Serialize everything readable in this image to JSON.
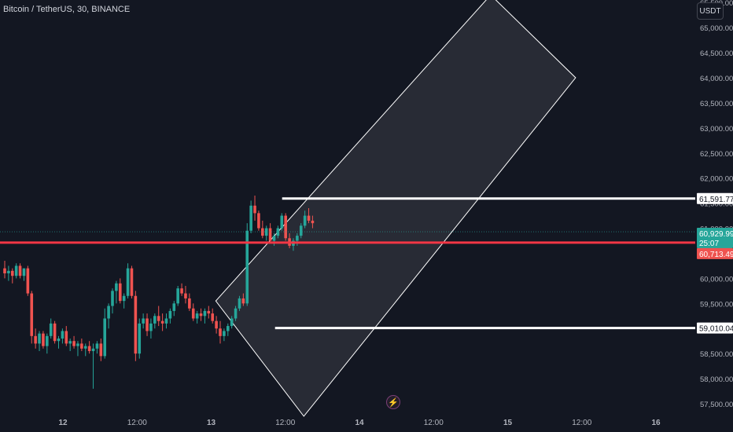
{
  "header": {
    "symbol_title": "Bitcoin / TetherUS, 30, BINANCE"
  },
  "toolbar": {
    "currency_label": "USDT"
  },
  "colors": {
    "background": "#131722",
    "up": "#26a69a",
    "down": "#ef5350",
    "horizontal_line": "#f23645",
    "channel_stroke": "#ffffff",
    "axis_text": "#b2b5be"
  },
  "icons": {
    "event": "lightning-icon"
  },
  "chart_data": {
    "type": "candlestick",
    "title": "Bitcoin / TetherUS, 30, BINANCE",
    "y_axis_side": "right",
    "ylim": [
      57250,
      65550
    ],
    "y_ticks": [
      "57,500.00",
      "58,000.00",
      "58,500.00",
      "59,000.00",
      "59,500.00",
      "60,000.00",
      "60,500.00",
      "61,000.00",
      "61,500.00",
      "62,000.00",
      "62,500.00",
      "63,000.00",
      "63,500.00",
      "64,000.00",
      "64,500.00",
      "65,000.00",
      "65,500.00"
    ],
    "x_ticks": [
      "12",
      "12:00",
      "13",
      "12:00",
      "14",
      "12:00",
      "15",
      "12:00",
      "16"
    ],
    "x_ticks_bold": [
      "12",
      "13",
      "14",
      "15",
      "16"
    ],
    "price_labels": [
      {
        "text": "61,591.77",
        "value": 61591.77,
        "style": "white"
      },
      {
        "text": "60,929.99",
        "value": 60929.99,
        "style": "green"
      },
      {
        "text": "25:07",
        "style": "green"
      },
      {
        "text": "60,713.49",
        "value": 60713.49,
        "style": "red"
      },
      {
        "text": "59,010.04",
        "value": 59010.04,
        "style": "white"
      }
    ],
    "horizontal_line": {
      "value": 60713.49,
      "color": "#f23645"
    },
    "segments": [
      {
        "from_time": "13 12:15",
        "to_time": "end",
        "value": 61591.77,
        "color": "#ffffff"
      },
      {
        "from_time": "13 12:15",
        "to_time": "end",
        "value": 59010.04,
        "color": "#ffffff"
      }
    ],
    "channel": {
      "label": "parallel channel",
      "corners": [
        {
          "time": "13 00:45",
          "price": 59550
        },
        {
          "time": "14 21:15",
          "price": 65650
        },
        {
          "time": "15 11:00",
          "price": 64000
        },
        {
          "time": "13 15:00",
          "price": 57250
        }
      ]
    },
    "candles": [
      [
        60200,
        60350,
        60000,
        60100
      ],
      [
        60100,
        60250,
        59950,
        60150
      ],
      [
        60150,
        60200,
        59900,
        60050
      ],
      [
        60050,
        60300,
        60000,
        60250
      ],
      [
        60250,
        60300,
        60000,
        60050
      ],
      [
        60050,
        60200,
        59950,
        60200
      ],
      [
        60200,
        60250,
        59650,
        59700
      ],
      [
        59700,
        59750,
        58700,
        58850
      ],
      [
        58850,
        59000,
        58600,
        58700
      ],
      [
        58700,
        58950,
        58550,
        58900
      ],
      [
        58900,
        58950,
        58600,
        58650
      ],
      [
        58650,
        58900,
        58500,
        58850
      ],
      [
        58850,
        59200,
        58800,
        59100
      ],
      [
        59100,
        59150,
        58700,
        58750
      ],
      [
        58750,
        58850,
        58600,
        58800
      ],
      [
        58800,
        59000,
        58700,
        58950
      ],
      [
        58950,
        59050,
        58650,
        58700
      ],
      [
        58700,
        58800,
        58550,
        58750
      ],
      [
        58750,
        58850,
        58600,
        58650
      ],
      [
        58650,
        58750,
        58450,
        58700
      ],
      [
        58700,
        58800,
        58550,
        58600
      ],
      [
        58600,
        58700,
        58450,
        58650
      ],
      [
        58650,
        58750,
        58500,
        58550
      ],
      [
        58550,
        58700,
        57800,
        58600
      ],
      [
        58600,
        58750,
        58500,
        58700
      ],
      [
        58700,
        58800,
        58350,
        58450
      ],
      [
        58450,
        59400,
        58400,
        59200
      ],
      [
        59200,
        59500,
        59000,
        59450
      ],
      [
        59450,
        59800,
        59300,
        59750
      ],
      [
        59750,
        59950,
        59500,
        59900
      ],
      [
        59900,
        60000,
        59500,
        59550
      ],
      [
        59550,
        59700,
        59400,
        59650
      ],
      [
        59650,
        60300,
        59600,
        60200
      ],
      [
        60200,
        60250,
        59600,
        59650
      ],
      [
        59650,
        59750,
        58350,
        58500
      ],
      [
        58500,
        59200,
        58400,
        59100
      ],
      [
        59100,
        59300,
        59000,
        59200
      ],
      [
        59200,
        59300,
        58850,
        58950
      ],
      [
        58950,
        59200,
        58800,
        59100
      ],
      [
        59100,
        59300,
        59000,
        59250
      ],
      [
        59250,
        59450,
        59050,
        59150
      ],
      [
        59150,
        59300,
        58950,
        59100
      ],
      [
        59100,
        59300,
        59000,
        59200
      ],
      [
        59200,
        59400,
        59100,
        59350
      ],
      [
        59350,
        59550,
        59250,
        59500
      ],
      [
        59500,
        59850,
        59450,
        59800
      ],
      [
        59800,
        59900,
        59650,
        59700
      ],
      [
        59700,
        59850,
        59500,
        59600
      ],
      [
        59600,
        59700,
        59350,
        59400
      ],
      [
        59400,
        59500,
        59150,
        59200
      ],
      [
        59200,
        59350,
        59100,
        59300
      ],
      [
        59300,
        59400,
        59150,
        59250
      ],
      [
        59250,
        59400,
        59100,
        59350
      ],
      [
        59350,
        59450,
        59200,
        59300
      ],
      [
        59300,
        59400,
        59100,
        59150
      ],
      [
        59150,
        59250,
        58900,
        59000
      ],
      [
        59000,
        59150,
        58700,
        58850
      ],
      [
        58850,
        59000,
        58750,
        58950
      ],
      [
        58950,
        59100,
        58850,
        59050
      ],
      [
        59050,
        59250,
        59000,
        59200
      ],
      [
        59200,
        59450,
        59150,
        59400
      ],
      [
        59400,
        59650,
        59350,
        59600
      ],
      [
        59600,
        59700,
        59450,
        59500
      ],
      [
        59500,
        61100,
        59450,
        60950
      ],
      [
        60950,
        61550,
        60900,
        61450
      ],
      [
        61450,
        61650,
        61150,
        61300
      ],
      [
        61300,
        61350,
        60950,
        61000
      ],
      [
        61000,
        61150,
        60800,
        60850
      ],
      [
        60850,
        61050,
        60750,
        61000
      ],
      [
        61000,
        61100,
        60700,
        60750
      ],
      [
        60750,
        60900,
        60650,
        60850
      ],
      [
        60850,
        61050,
        60800,
        61000
      ],
      [
        61000,
        61300,
        60950,
        61250
      ],
      [
        61250,
        61300,
        60750,
        60800
      ],
      [
        60800,
        60900,
        60600,
        60650
      ],
      [
        60650,
        60800,
        60550,
        60750
      ],
      [
        60750,
        60900,
        60650,
        60850
      ],
      [
        60850,
        61100,
        60800,
        61050
      ],
      [
        61050,
        61350,
        61000,
        61250
      ],
      [
        61250,
        61400,
        61100,
        61150
      ],
      [
        61150,
        61250,
        61000,
        61100
      ]
    ]
  }
}
